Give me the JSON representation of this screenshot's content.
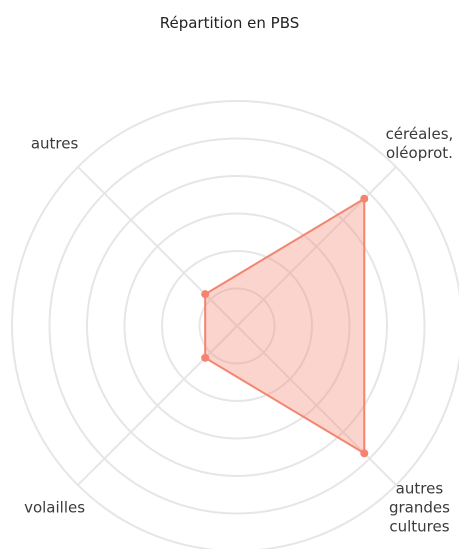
{
  "chart_data": {
    "type": "radar",
    "title": "Répartition en PBS",
    "categories": [
      "céréales,\noléoprot.",
      "autres\ngrandes\ncultures",
      "volailles",
      "autres"
    ],
    "series": [
      {
        "name": "PBS",
        "color": "#f4846f",
        "values": [
          48,
          48,
          12,
          12
        ]
      }
    ],
    "rlim": [
      0,
      60
    ],
    "rticks": [
      10,
      20,
      30,
      40,
      50,
      60
    ],
    "grid": true
  }
}
